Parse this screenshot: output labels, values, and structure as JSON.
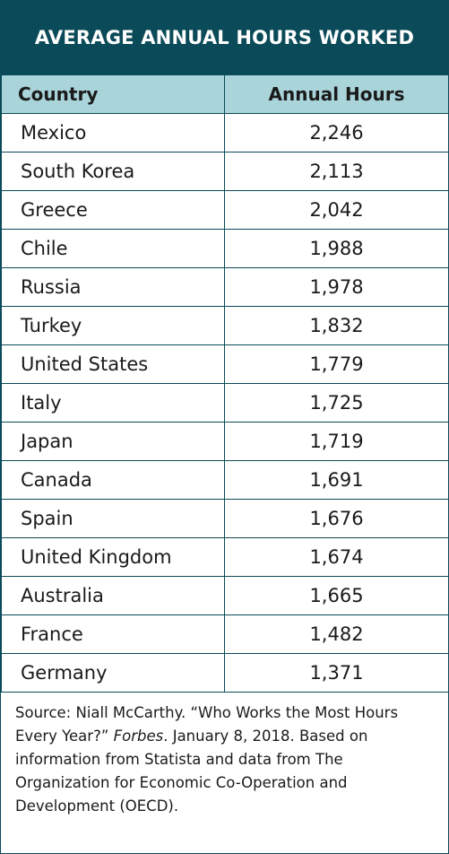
{
  "title": "AVERAGE ANNUAL HOURS WORKED",
  "table": {
    "headers": [
      "Country",
      "Annual Hours"
    ],
    "rows": [
      {
        "country": "Mexico",
        "hours": "2,246"
      },
      {
        "country": "South Korea",
        "hours": "2,113"
      },
      {
        "country": "Greece",
        "hours": "2,042"
      },
      {
        "country": "Chile",
        "hours": "1,988"
      },
      {
        "country": "Russia",
        "hours": "1,978"
      },
      {
        "country": "Turkey",
        "hours": "1,832"
      },
      {
        "country": "United States",
        "hours": "1,779"
      },
      {
        "country": "Italy",
        "hours": "1,725"
      },
      {
        "country": "Japan",
        "hours": "1,719"
      },
      {
        "country": "Canada",
        "hours": "1,691"
      },
      {
        "country": "Spain",
        "hours": "1,676"
      },
      {
        "country": "United Kingdom",
        "hours": "1,674"
      },
      {
        "country": "Australia",
        "hours": "1,665"
      },
      {
        "country": "France",
        "hours": "1,482"
      },
      {
        "country": "Germany",
        "hours": "1,371"
      }
    ]
  },
  "source": {
    "before": "Source: Niall McCarthy. “Who Works the Most Hours Every Year?” ",
    "publication": "Forbes",
    "after": ". January 8, 2018. Based on information from Statista and data from The Organization for Economic Co-Operation and Development (OECD)."
  },
  "colors": {
    "title_bg": "#0b4a58",
    "header_bg": "#a8d4da",
    "border": "#0b4a58"
  }
}
